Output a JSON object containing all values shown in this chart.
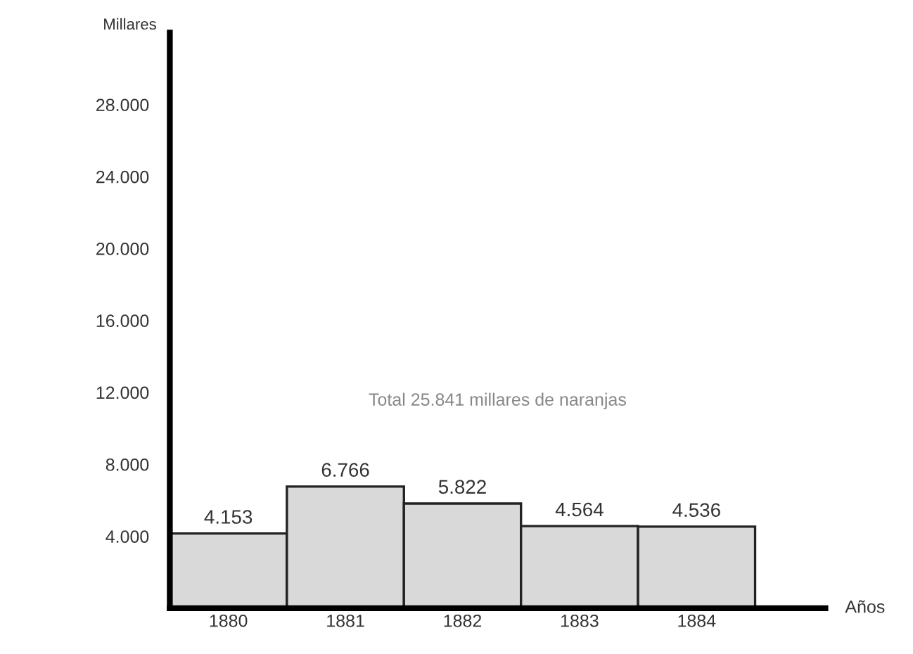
{
  "chart_data": {
    "type": "bar",
    "categories": [
      "1880",
      "1881",
      "1882",
      "1883",
      "1884"
    ],
    "values": [
      4153,
      6766,
      5822,
      4564,
      4536
    ],
    "value_labels": [
      "4.153",
      "6.766",
      "5.822",
      "4.564",
      "4.536"
    ],
    "color": "#d9d9d9",
    "xlabel": "Años",
    "ylabel": "Millares",
    "annotations": [
      "Total 25.841 millares de naranjas"
    ],
    "ylim": [
      0,
      32000
    ],
    "yticks": [
      {
        "value": 4000,
        "label": "4.000"
      },
      {
        "value": 8000,
        "label": "8.000"
      },
      {
        "value": 12000,
        "label": "12.000"
      },
      {
        "value": 16000,
        "label": "16.000"
      },
      {
        "value": 20000,
        "label": "20.000"
      },
      {
        "value": 24000,
        "label": "24.000"
      },
      {
        "value": 28000,
        "label": "28.000"
      }
    ],
    "grid": false,
    "legend": false
  }
}
